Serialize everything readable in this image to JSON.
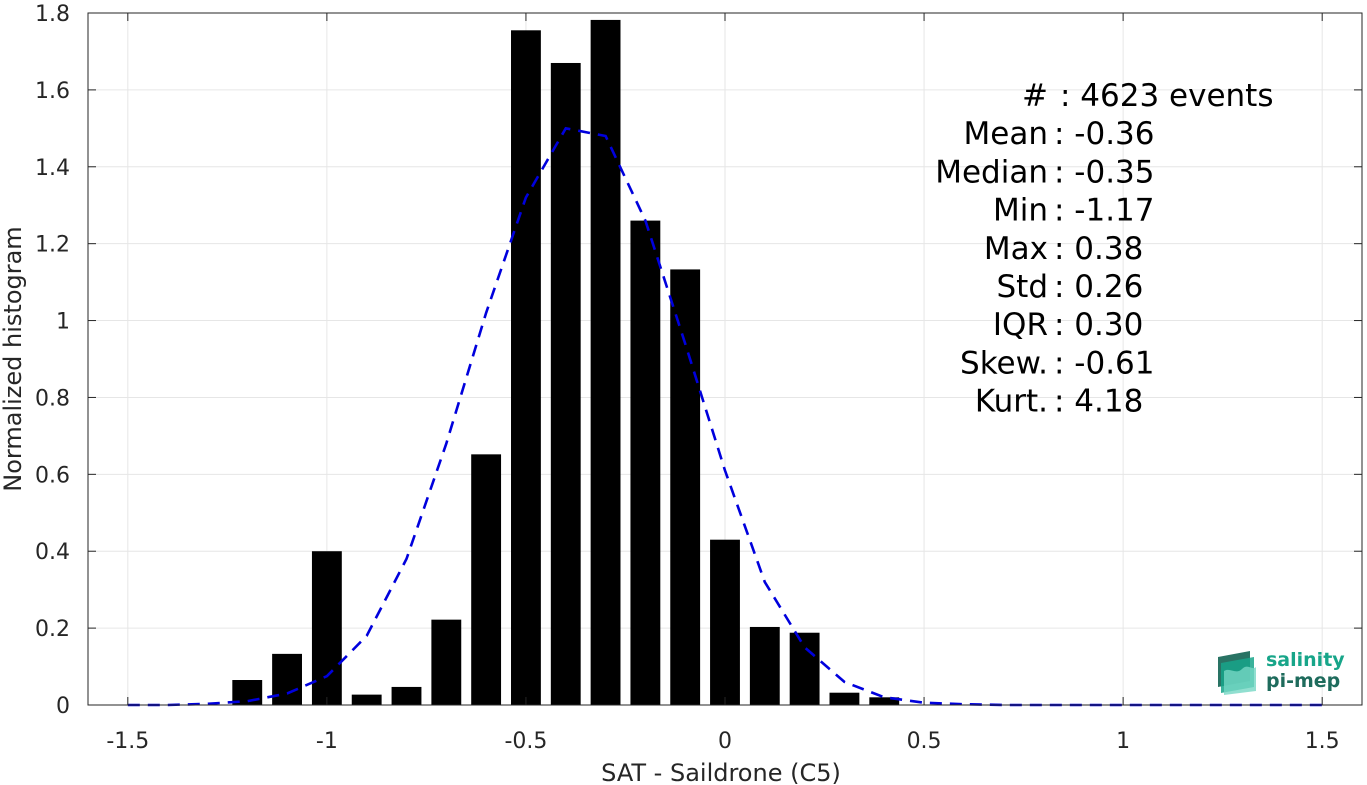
{
  "chart_data": {
    "type": "bar",
    "title": "",
    "xlabel": "SAT - Saildrone (C5)",
    "ylabel": "Normalized histogram",
    "xlim": [
      -1.6,
      1.6
    ],
    "ylim": [
      0,
      1.8
    ],
    "xticks": [
      -1.5,
      -1,
      -0.5,
      0,
      0.5,
      1,
      1.5
    ],
    "xtick_labels": [
      "-1.5",
      "-1",
      "-0.5",
      "0",
      "0.5",
      "1",
      "1.5"
    ],
    "yticks": [
      0,
      0.2,
      0.4,
      0.6,
      0.8,
      1,
      1.2,
      1.4,
      1.6,
      1.8
    ],
    "ytick_labels": [
      "0",
      "0.2",
      "0.4",
      "0.6",
      "0.8",
      "1",
      "1.2",
      "1.4",
      "1.6",
      "1.8"
    ],
    "grid": true,
    "bar_color": "#000000",
    "bin_width": 0.1,
    "bars": [
      {
        "x": -1.2,
        "y": 0.065
      },
      {
        "x": -1.1,
        "y": 0.133
      },
      {
        "x": -1.0,
        "y": 0.4
      },
      {
        "x": -0.9,
        "y": 0.027
      },
      {
        "x": -0.8,
        "y": 0.047
      },
      {
        "x": -0.7,
        "y": 0.222
      },
      {
        "x": -0.6,
        "y": 0.652
      },
      {
        "x": -0.5,
        "y": 1.755
      },
      {
        "x": -0.4,
        "y": 1.67
      },
      {
        "x": -0.3,
        "y": 1.782
      },
      {
        "x": -0.2,
        "y": 1.26
      },
      {
        "x": -0.1,
        "y": 1.133
      },
      {
        "x": 0.0,
        "y": 0.43
      },
      {
        "x": 0.1,
        "y": 0.203
      },
      {
        "x": 0.2,
        "y": 0.188
      },
      {
        "x": 0.3,
        "y": 0.032
      },
      {
        "x": 0.4,
        "y": 0.02
      }
    ],
    "fit_line": {
      "style": "dashed",
      "color": "#0000dd",
      "x": [
        -1.5,
        -1.4,
        -1.3,
        -1.2,
        -1.1,
        -1.0,
        -0.9,
        -0.8,
        -0.7,
        -0.6,
        -0.5,
        -0.4,
        -0.3,
        -0.2,
        -0.1,
        0.0,
        0.1,
        0.2,
        0.3,
        0.4,
        0.5,
        0.6,
        0.7,
        0.8,
        0.9,
        1.0,
        1.1,
        1.2,
        1.3,
        1.4,
        1.5
      ],
      "y": [
        0.0,
        0.0,
        0.003,
        0.01,
        0.03,
        0.075,
        0.18,
        0.38,
        0.68,
        1.02,
        1.32,
        1.5,
        1.48,
        1.26,
        0.94,
        0.61,
        0.32,
        0.15,
        0.06,
        0.02,
        0.006,
        0.002,
        0.0,
        0.0,
        0.0,
        0.0,
        0.0,
        0.0,
        0.0,
        0.0,
        0.0
      ]
    },
    "annotations": [
      {
        "label": "#",
        "value": ": 4623 events"
      },
      {
        "label": "Mean",
        "value": ": -0.36"
      },
      {
        "label": "Median",
        "value": ": -0.35"
      },
      {
        "label": "Min",
        "value": ": -1.17"
      },
      {
        "label": "Max",
        "value": ": 0.38"
      },
      {
        "label": "Std",
        "value": ": 0.26"
      },
      {
        "label": "IQR",
        "value": ": 0.30"
      },
      {
        "label": "Skew.",
        "value": ": -0.61"
      },
      {
        "label": "Kurt.",
        "value": ": 4.18"
      }
    ]
  },
  "logo": {
    "line1": "salinity",
    "line2": "pi-mep",
    "color_primary": "#17a589",
    "color_secondary": "#1e6b5c"
  }
}
